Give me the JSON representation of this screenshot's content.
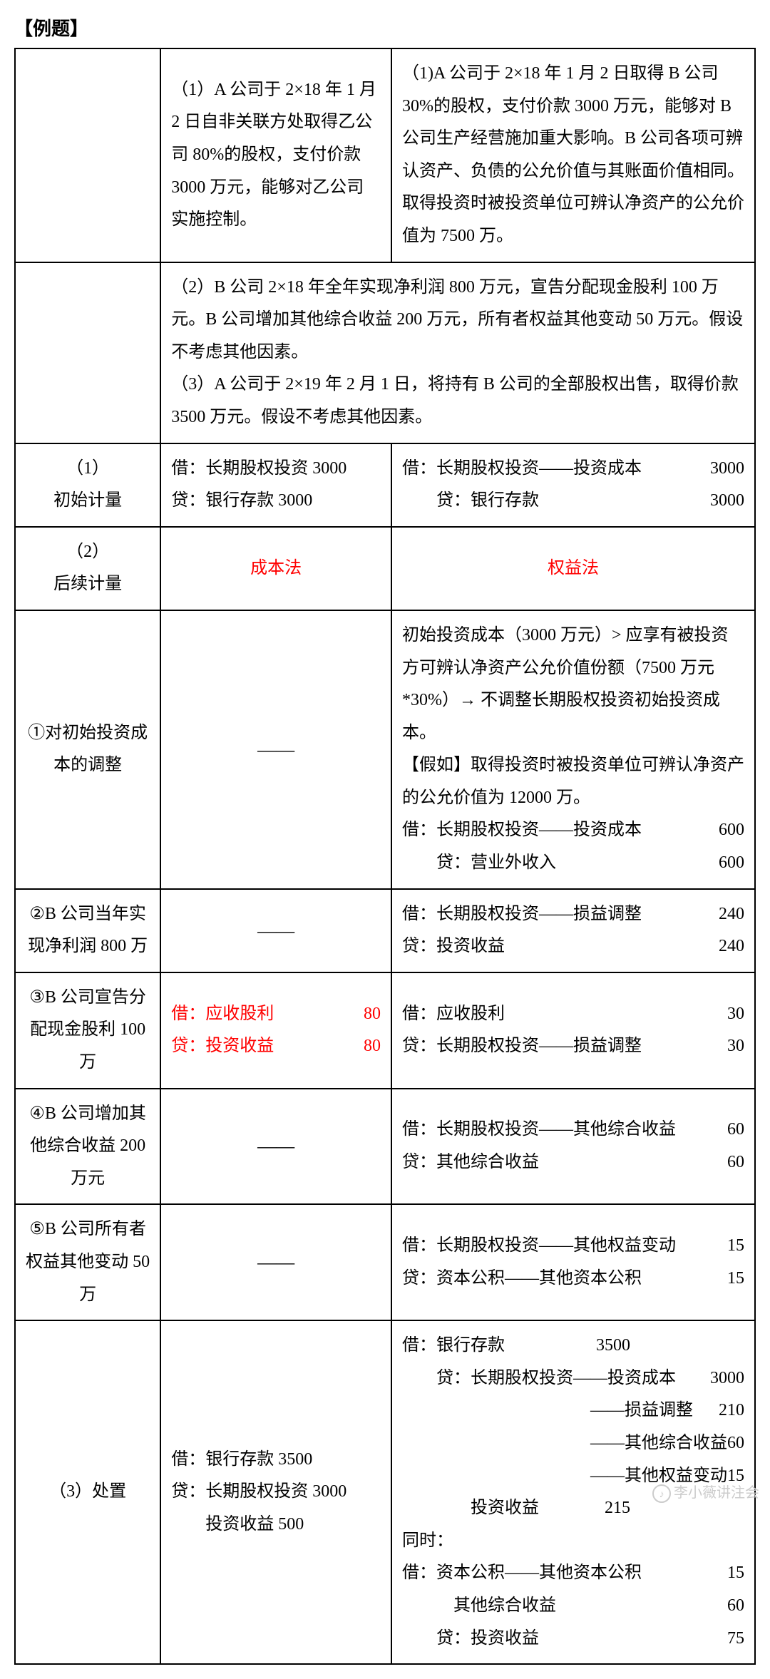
{
  "title": "【例题】",
  "row1": {
    "col2": "（1）A 公司于 2×18 年 1 月 2 日自非关联方处取得乙公司 80%的股权，支付价款 3000 万元，能够对乙公司实施控制。",
    "col3": "（1)A 公司于 2×18 年 1 月 2 日取得 B 公司 30%的股权，支付价款 3000 万元，能够对 B 公司生产经营施加重大影响。B 公司各项可辨认资产、负债的公允价值与其账面价值相同。取得投资时被投资单位可辨认净资产的公允价值为 7500 万。"
  },
  "row2": {
    "col23": "（2）B 公司 2×18 年全年实现净利润 800 万元，宣告分配现金股利 100 万元。B 公司增加其他综合收益 200 万元，所有者权益其他变动 50 万元。假设不考虑其他因素。\n（3）A 公司于 2×19 年 2 月 1 日，将持有 B 公司的全部股权出售，取得价款 3500 万元。假设不考虑其他因素。"
  },
  "row_init": {
    "label_a": "（1）",
    "label_b": "初始计量",
    "col2_l1": "借：长期股权投资 3000",
    "col2_l2": "贷：银行存款 3000",
    "col3_l1a": "借：长期股权投资——投资成本",
    "col3_l1b": "3000",
    "col3_l2a": "贷：银行存款",
    "col3_l2b": "3000"
  },
  "row_follow": {
    "label_a": "（2）",
    "label_b": "后续计量",
    "col2": "成本法",
    "col3": "权益法"
  },
  "row_adj": {
    "label": "①对初始投资成本的调整",
    "col2": "——",
    "col3_p1": "初始投资成本（3000 万元）> 应享有被投资方可辨认净资产公允价值份额（7500 万元*30%）→ 不调整长期股权投资初始投资成本。",
    "col3_p2": "【假如】取得投资时被投资单位可辨认净资产的公允价值为 12000 万。",
    "col3_l1a": "借：长期股权投资——投资成本",
    "col3_l1b": "600",
    "col3_l2a": "贷：营业外收入",
    "col3_l2b": "600"
  },
  "row_profit": {
    "label": "②B 公司当年实现净利润 800 万",
    "col2": "——",
    "col3_l1a": "借：长期股权投资——损益调整",
    "col3_l1b": "240",
    "col3_l2a": "贷：投资收益",
    "col3_l2b": "240"
  },
  "row_div": {
    "label": "③B 公司宣告分配现金股利 100 万",
    "col2_l1a": "借：应收股利",
    "col2_l1b": "80",
    "col2_l2a": "贷：投资收益",
    "col2_l2b": "80",
    "col3_l1a": "借：应收股利",
    "col3_l1b": "30",
    "col3_l2a": "贷：长期股权投资——损益调整",
    "col3_l2b": "30"
  },
  "row_oci": {
    "label": "④B 公司增加其他综合收益 200 万元",
    "col2": "——",
    "col3_l1a": "借：长期股权投资——其他综合收益",
    "col3_l1b": "60",
    "col3_l2a": "贷：其他综合收益",
    "col3_l2b": "60"
  },
  "row_other": {
    "label": "⑤B 公司所有者权益其他变动 50 万",
    "col2": "——",
    "col3_l1a": "借：长期股权投资——其他权益变动",
    "col3_l1b": "15",
    "col3_l2a": "贷：资本公积——其他资本公积",
    "col3_l2b": "15"
  },
  "row_disp": {
    "label": "（3）处置",
    "col2_l1": "借：银行存款 3500",
    "col2_l2": "贷：长期股权投资 3000",
    "col2_l3": "投资收益 500",
    "col3_l1a": "借：银行存款",
    "col3_l1b": "3500",
    "col3_l2a": "贷：长期股权投资——投资成本",
    "col3_l2b": "3000",
    "col3_l3a": "——损益调整",
    "col3_l3b": "210",
    "col3_l4a": "——其他综合收益",
    "col3_l4b": "60",
    "col3_l5a": "——其他权益变动",
    "col3_l5b": "15",
    "col3_l6a": "投资收益",
    "col3_l6b": "215",
    "col3_l7": "同时：",
    "col3_l8a": "借：资本公积——其他资本公积",
    "col3_l8b": "15",
    "col3_l9a": "其他综合收益",
    "col3_l9b": "60",
    "col3_l10a": "贷：投资收益",
    "col3_l10b": "75"
  },
  "watermark": "李小薇讲注会"
}
